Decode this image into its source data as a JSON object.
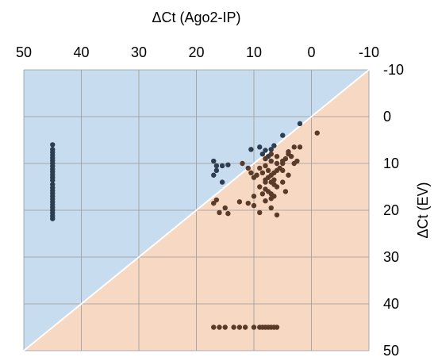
{
  "chart_data": {
    "type": "scatter",
    "title": "",
    "xlabel": "ΔCt (Ago2-IP)",
    "ylabel": "ΔCt (EV)",
    "x_axis_position": "top",
    "y_axis_position": "right",
    "x_reversed": true,
    "y_reversed": true,
    "xlim": [
      50,
      -10
    ],
    "ylim": [
      -10,
      50
    ],
    "x_ticks": [
      "50",
      "40",
      "30",
      "20",
      "10",
      "0",
      "-10"
    ],
    "y_ticks": [
      "-10",
      "0",
      "10",
      "20",
      "30",
      "40",
      "50"
    ],
    "grid": true,
    "diagonal": "y = x boundary",
    "colors": {
      "upper_region": "#c7dcee",
      "lower_region": "#f6d8c3",
      "diagonal_line": "#ffffff",
      "grid": "#9a9a9a",
      "dark_points": "#2c3e50",
      "brown_points": "#5a3a28"
    },
    "series": [
      {
        "color": "#2c3e50",
        "points": [
          [
            45,
            6
          ],
          [
            45,
            7
          ],
          [
            45,
            7.6
          ],
          [
            45,
            8.2
          ],
          [
            45,
            8.8
          ],
          [
            45,
            9.4
          ],
          [
            45,
            10
          ],
          [
            45,
            10.6
          ],
          [
            45,
            11.2
          ],
          [
            45,
            11.8
          ],
          [
            45,
            12.4
          ],
          [
            45,
            13
          ],
          [
            45,
            13.6
          ],
          [
            45,
            14.5
          ],
          [
            45,
            15.2
          ],
          [
            45,
            15.8
          ],
          [
            45,
            16.4
          ],
          [
            45,
            17
          ],
          [
            45,
            17.6
          ],
          [
            45,
            18.2
          ],
          [
            45,
            18.8
          ],
          [
            45,
            19.4
          ],
          [
            45,
            20
          ],
          [
            45,
            20.6
          ],
          [
            45,
            21.2
          ],
          [
            45,
            21.8
          ],
          [
            17,
            9.5
          ],
          [
            16.5,
            10.5
          ],
          [
            15.5,
            10.5
          ],
          [
            14.5,
            10.3
          ],
          [
            17,
            12.5
          ],
          [
            15.5,
            14
          ],
          [
            16.5,
            11.5
          ],
          [
            10.5,
            7
          ],
          [
            9,
            6.5
          ],
          [
            8,
            7.2
          ],
          [
            8.5,
            8
          ],
          [
            7.5,
            8.5
          ],
          [
            7,
            7
          ],
          [
            6.5,
            6.2
          ],
          [
            5,
            4
          ],
          [
            2,
            1.5
          ]
        ]
      },
      {
        "color": "#5a3a28",
        "points": [
          [
            -1,
            3.5
          ],
          [
            2,
            6.5
          ],
          [
            3,
            6.5
          ],
          [
            4,
            7.5
          ],
          [
            3.5,
            8.5
          ],
          [
            4.5,
            9
          ],
          [
            2.5,
            9.5
          ],
          [
            5,
            10
          ],
          [
            5.5,
            11
          ],
          [
            6,
            11.5
          ],
          [
            6.5,
            12
          ],
          [
            7,
            12.5
          ],
          [
            7.5,
            13
          ],
          [
            8,
            13.5
          ],
          [
            7,
            14
          ],
          [
            6.5,
            14.5
          ],
          [
            6,
            15
          ],
          [
            8,
            15.5
          ],
          [
            7.5,
            16
          ],
          [
            7,
            16.5
          ],
          [
            6.5,
            17
          ],
          [
            7,
            17.5
          ],
          [
            8,
            18
          ],
          [
            5,
            11.5
          ],
          [
            6,
            10
          ],
          [
            7,
            9.5
          ],
          [
            8,
            10.5
          ],
          [
            9,
            11
          ],
          [
            8.5,
            12
          ],
          [
            9.5,
            12.5
          ],
          [
            10,
            13
          ],
          [
            8,
            14
          ],
          [
            9,
            15
          ],
          [
            8.5,
            16.5
          ],
          [
            10,
            17
          ],
          [
            11,
            18.5
          ],
          [
            12.5,
            18.2
          ],
          [
            10,
            19
          ],
          [
            15,
            19.5
          ],
          [
            16,
            20.5
          ],
          [
            14.5,
            20.7
          ],
          [
            16.5,
            17.8
          ],
          [
            17,
            18.5
          ],
          [
            12,
            10
          ],
          [
            11,
            11
          ],
          [
            10.5,
            12
          ],
          [
            6,
            8.5
          ],
          [
            5,
            9.5
          ],
          [
            7.5,
            11.5
          ],
          [
            6.5,
            13.5
          ],
          [
            4,
            12.5
          ],
          [
            4.5,
            16
          ],
          [
            7,
            19.5
          ],
          [
            9,
            20.5
          ],
          [
            6,
            21
          ],
          [
            5,
            14
          ],
          [
            3,
            10
          ],
          [
            4,
            8
          ],
          [
            7,
            8
          ],
          [
            8,
            9
          ],
          [
            17,
            45
          ],
          [
            16,
            45
          ],
          [
            15,
            45
          ],
          [
            13.5,
            45
          ],
          [
            12.5,
            45
          ],
          [
            11.5,
            45
          ],
          [
            10,
            45
          ],
          [
            9,
            45
          ],
          [
            8.5,
            45
          ],
          [
            8,
            45
          ],
          [
            7.5,
            45
          ],
          [
            7,
            45
          ],
          [
            6.5,
            45
          ],
          [
            6,
            45
          ]
        ]
      }
    ]
  }
}
